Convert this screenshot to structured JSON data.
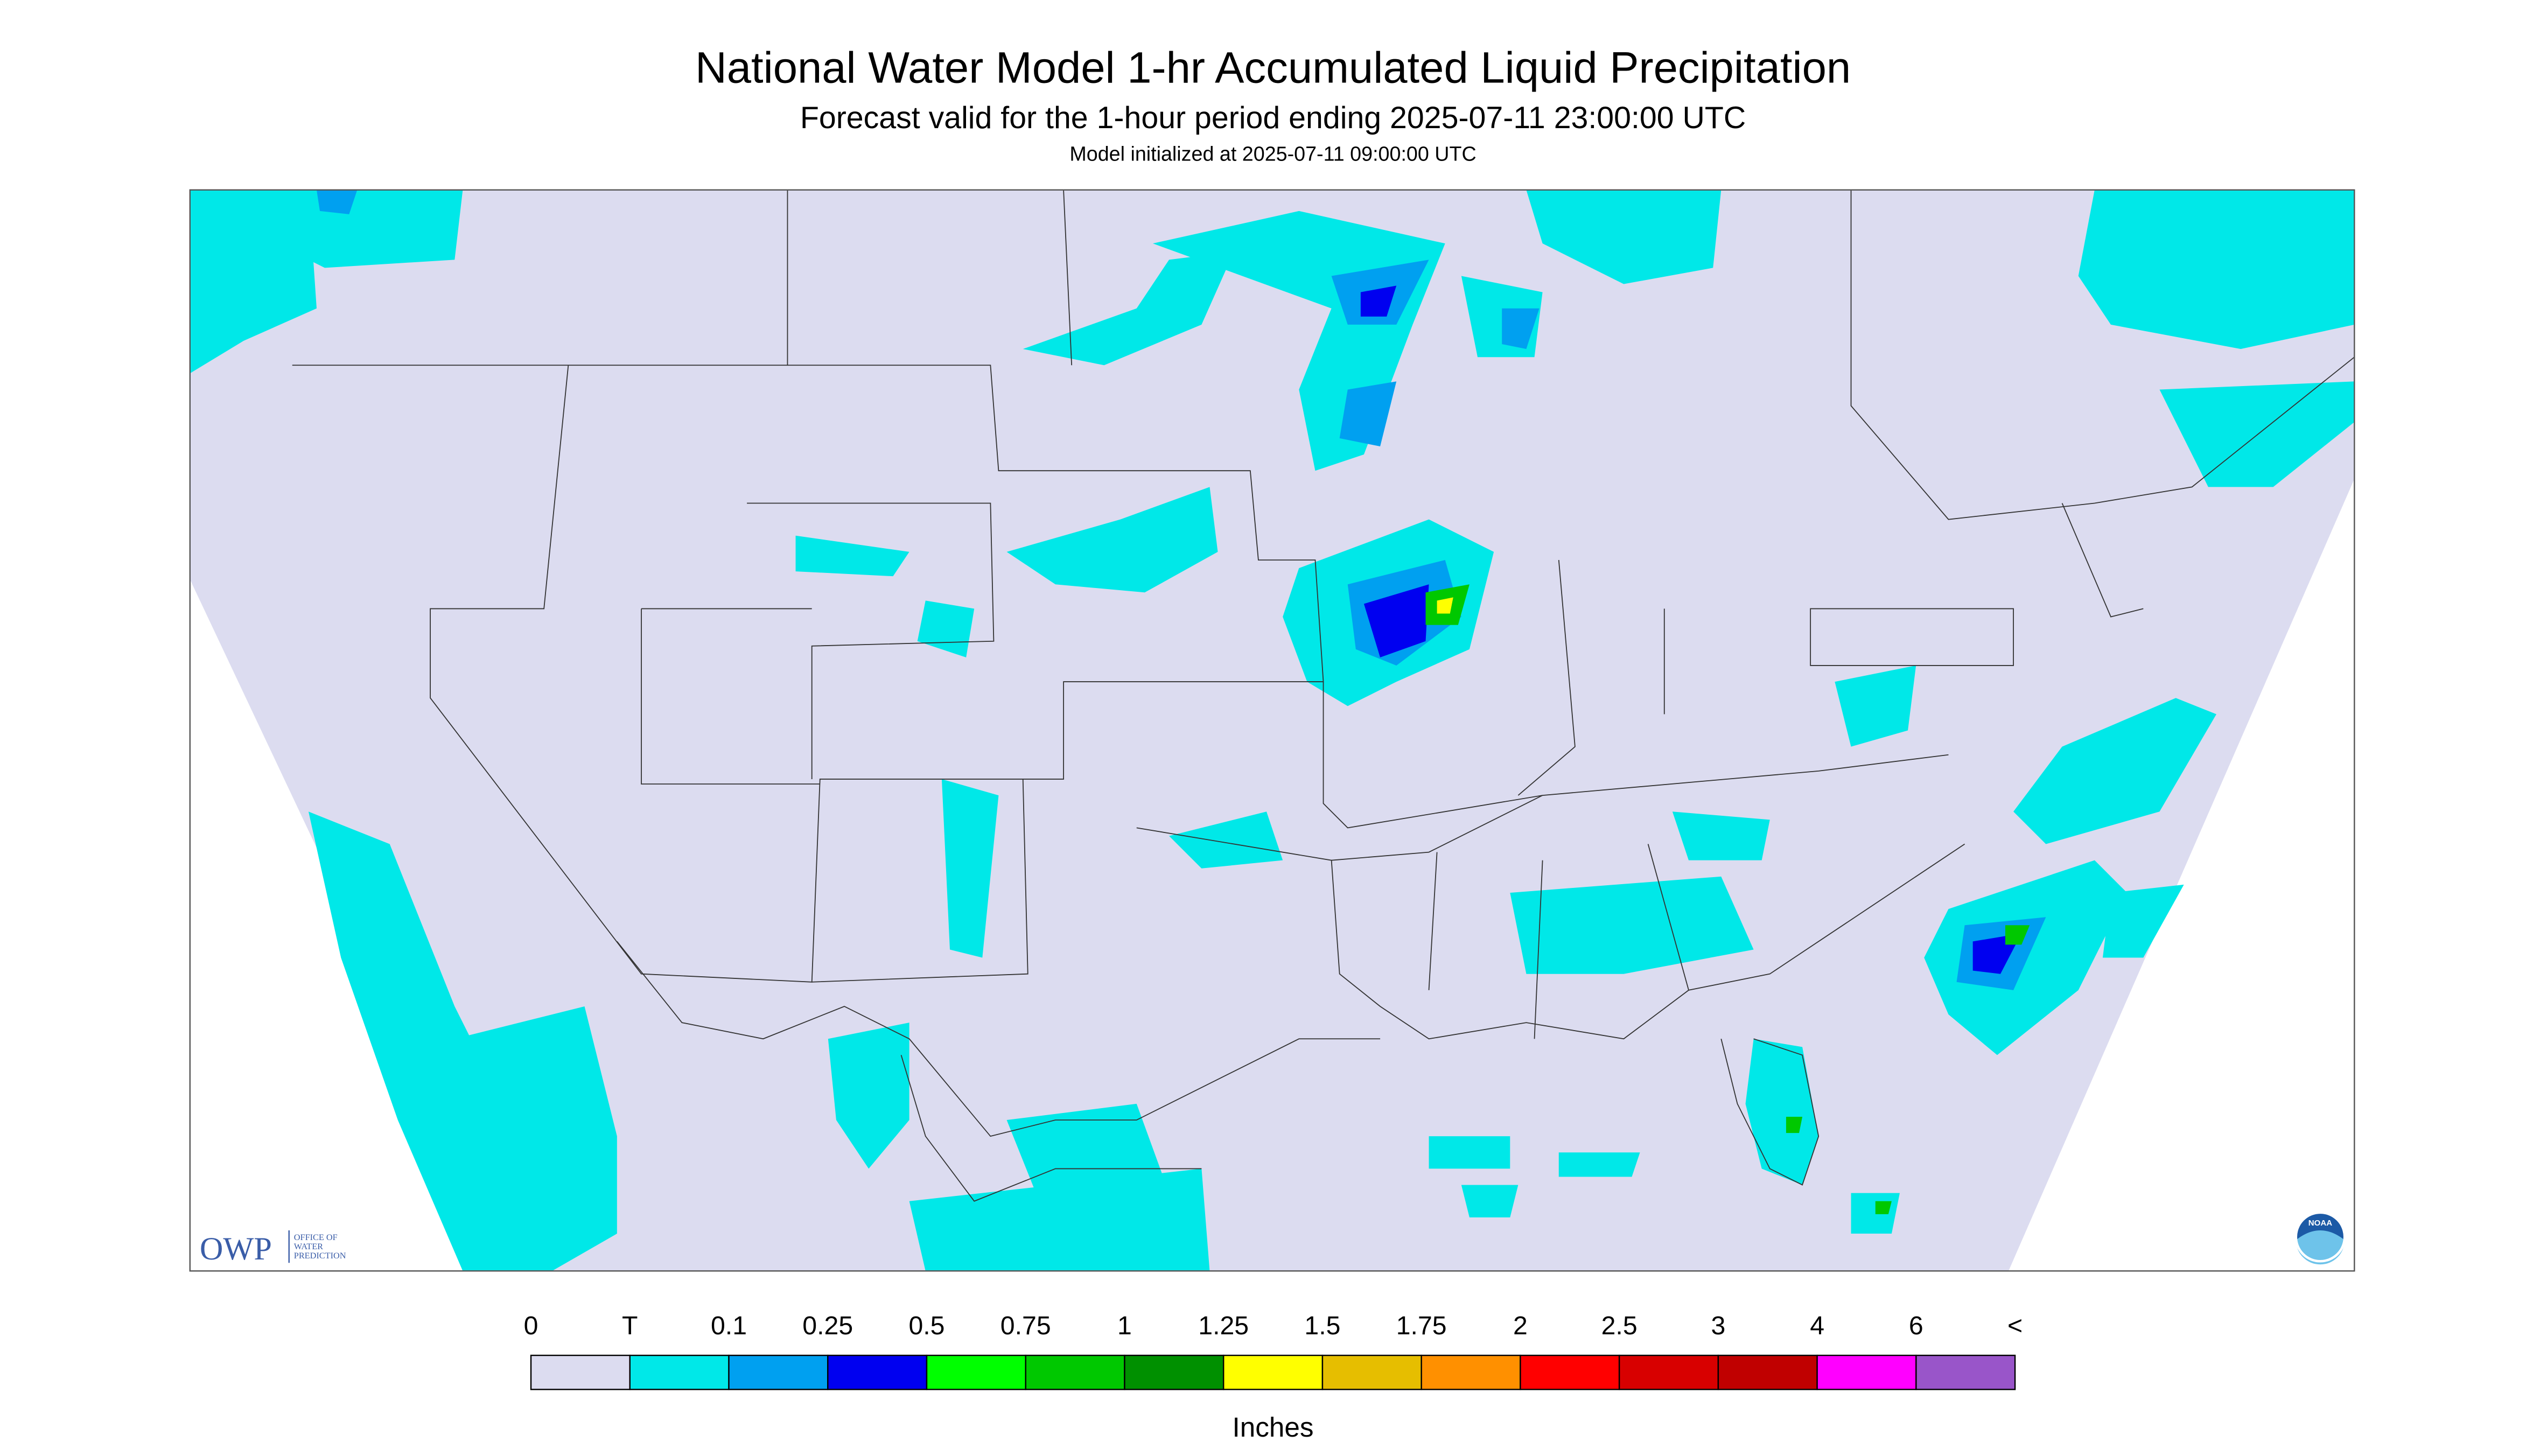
{
  "header": {
    "title": "National Water Model 1-hr Accumulated Liquid Precipitation",
    "subtitle": "Forecast valid for the 1-hour period ending 2025-07-11 23:00:00 UTC",
    "init": "Model initialized at 2025-07-11 09:00:00 UTC"
  },
  "legend": {
    "labels": [
      "0",
      "T",
      "0.1",
      "0.25",
      "0.5",
      "0.75",
      "1",
      "1.25",
      "1.5",
      "1.75",
      "2",
      "2.5",
      "3",
      "4",
      "6",
      "<"
    ],
    "colors": [
      "#dcdcf0",
      "#00e8e8",
      "#00a0f0",
      "#0000f0",
      "#00ff00",
      "#00c800",
      "#009000",
      "#ffff00",
      "#e6be00",
      "#ff9000",
      "#ff0000",
      "#d80000",
      "#c00000",
      "#ff00ff",
      "#9955c9"
    ],
    "unit": "Inches"
  },
  "logo": {
    "text": "OWP",
    "org": [
      "OFFICE OF",
      "WATER",
      "PREDICTION"
    ],
    "noaa": "NOAA"
  }
}
